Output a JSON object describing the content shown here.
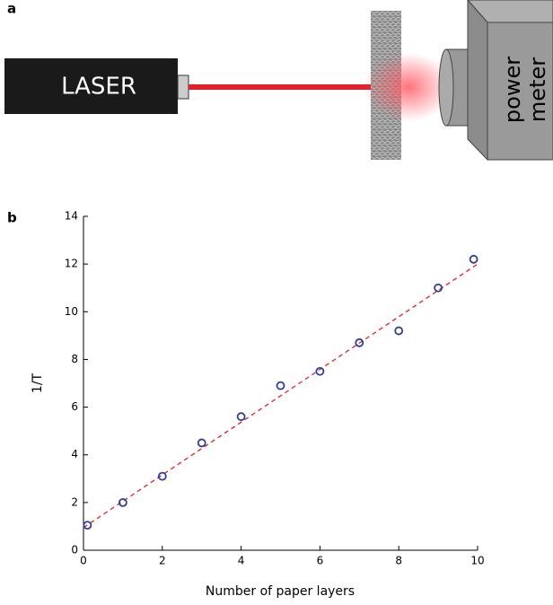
{
  "panels": {
    "a": "a",
    "b": "b"
  },
  "diagram": {
    "laser": "LASER",
    "meter": [
      "power",
      "meter"
    ]
  },
  "chart_data": {
    "type": "scatter",
    "x_label": "Number of paper layers",
    "y_label": "1/T",
    "series": [
      {
        "color": "#2b3f9e",
        "x": [
          0.1,
          1,
          2,
          3,
          4,
          5,
          6,
          7,
          8,
          9,
          9.9
        ],
        "values": [
          1.05,
          2.0,
          3.1,
          4.5,
          5.6,
          6.9,
          7.5,
          8.7,
          9.2,
          11.0,
          12.2
        ]
      }
    ],
    "fit": {
      "color": "#e0202a",
      "x": [
        0,
        10
      ],
      "values": [
        0.95,
        12.0
      ]
    },
    "xlim": [
      0,
      10
    ],
    "ylim": [
      0,
      14
    ],
    "xticks": [
      0,
      2,
      4,
      6,
      8,
      10
    ],
    "yticks": [
      0,
      2,
      4,
      6,
      8,
      10,
      12,
      14
    ]
  }
}
